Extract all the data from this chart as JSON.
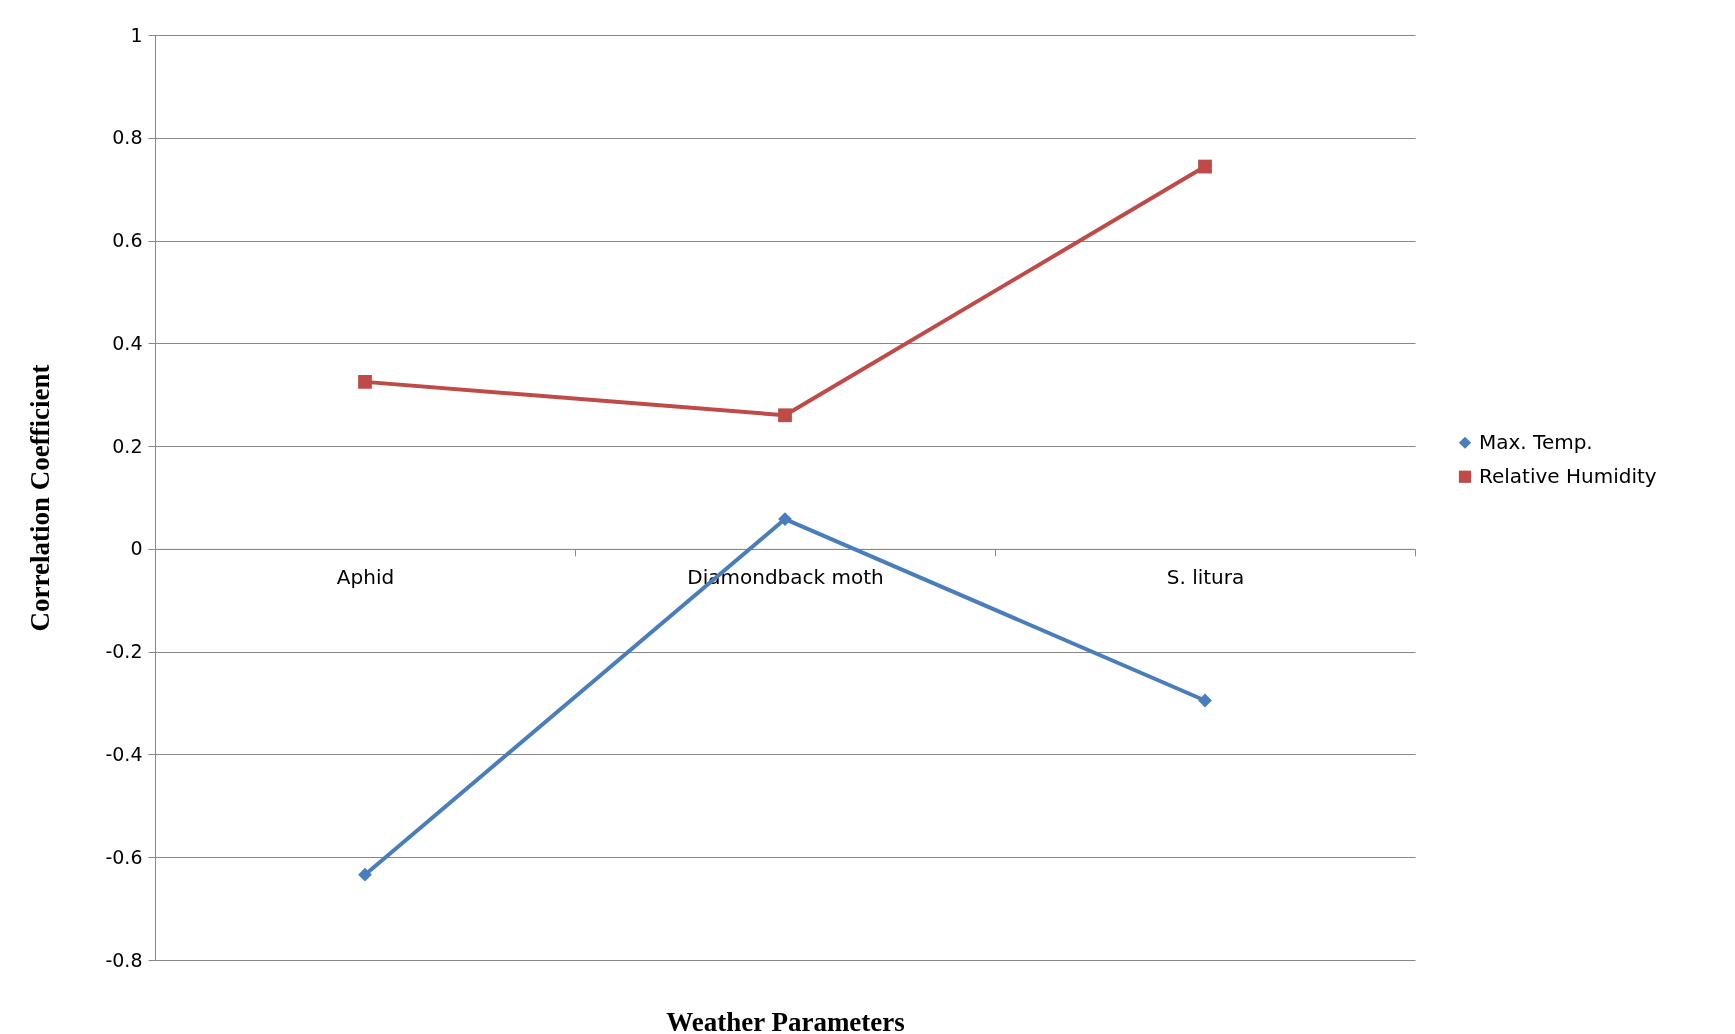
{
  "chart_data": {
    "type": "line",
    "xlabel": "Weather Parameters",
    "ylabel": "Correlation Coefficient",
    "categories": [
      "Aphid",
      "Diamondback moth",
      "S. litura"
    ],
    "series": [
      {
        "name": "Max. Temp.",
        "color": "#4a7ebb",
        "marker": "diamond",
        "values": [
          -0.634,
          0.058,
          -0.295
        ]
      },
      {
        "name": "Relative Humidity",
        "color": "#be4b48",
        "marker": "square",
        "values": [
          0.325,
          0.26,
          0.744
        ]
      }
    ],
    "ylim": [
      -0.8,
      1
    ],
    "yticks": [
      -0.8,
      -0.6,
      -0.4,
      -0.2,
      0,
      0.2,
      0.4,
      0.6,
      0.8,
      1
    ],
    "grid": "y",
    "legend": "right"
  }
}
